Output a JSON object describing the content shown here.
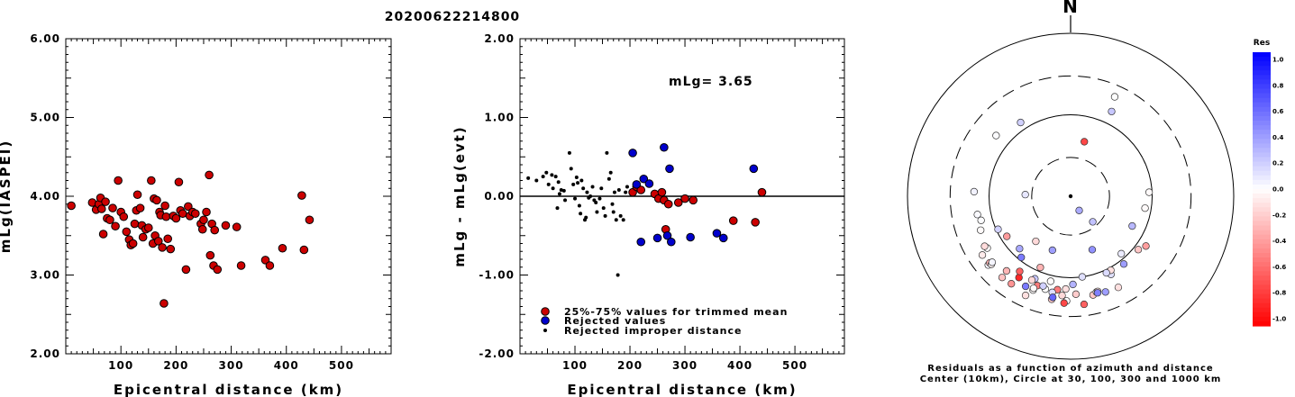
{
  "title": "20200622214800",
  "chart_data": [
    {
      "type": "scatter",
      "id": "left",
      "xlabel": "Epicentral distance (km)",
      "ylabel": "mLg(IASPEI)",
      "xlim": [
        0,
        590
      ],
      "ylim": [
        2.0,
        6.0
      ],
      "xticks": [
        100,
        200,
        300,
        400,
        500
      ],
      "yticks": [
        2.0,
        3.0,
        4.0,
        5.0,
        6.0
      ],
      "xtick_labels": [
        "100",
        "200",
        "300",
        "400",
        "500"
      ],
      "ytick_labels": [
        "2.00",
        "3.00",
        "4.00",
        "5.00",
        "6.00"
      ],
      "points": [
        [
          10,
          3.88
        ],
        [
          48,
          3.92
        ],
        [
          55,
          3.83
        ],
        [
          60,
          3.9
        ],
        [
          63,
          3.98
        ],
        [
          65,
          3.84
        ],
        [
          68,
          3.52
        ],
        [
          72,
          3.93
        ],
        [
          75,
          3.72
        ],
        [
          80,
          3.7
        ],
        [
          85,
          3.85
        ],
        [
          90,
          3.62
        ],
        [
          95,
          4.2
        ],
        [
          100,
          3.8
        ],
        [
          105,
          3.74
        ],
        [
          110,
          3.55
        ],
        [
          115,
          3.45
        ],
        [
          118,
          3.38
        ],
        [
          122,
          3.4
        ],
        [
          125,
          3.65
        ],
        [
          128,
          3.82
        ],
        [
          130,
          4.02
        ],
        [
          135,
          3.85
        ],
        [
          138,
          3.63
        ],
        [
          140,
          3.48
        ],
        [
          145,
          3.58
        ],
        [
          150,
          3.6
        ],
        [
          155,
          4.2
        ],
        [
          158,
          3.4
        ],
        [
          160,
          3.97
        ],
        [
          162,
          3.5
        ],
        [
          165,
          3.95
        ],
        [
          168,
          3.43
        ],
        [
          170,
          3.8
        ],
        [
          172,
          3.76
        ],
        [
          175,
          3.35
        ],
        [
          178,
          2.64
        ],
        [
          180,
          3.88
        ],
        [
          182,
          3.74
        ],
        [
          185,
          3.46
        ],
        [
          190,
          3.33
        ],
        [
          195,
          3.75
        ],
        [
          200,
          3.72
        ],
        [
          205,
          4.18
        ],
        [
          208,
          3.82
        ],
        [
          212,
          3.78
        ],
        [
          218,
          3.07
        ],
        [
          222,
          3.87
        ],
        [
          225,
          3.75
        ],
        [
          230,
          3.8
        ],
        [
          235,
          3.78
        ],
        [
          245,
          3.65
        ],
        [
          248,
          3.58
        ],
        [
          250,
          3.7
        ],
        [
          255,
          3.8
        ],
        [
          260,
          4.27
        ],
        [
          262,
          3.25
        ],
        [
          265,
          3.65
        ],
        [
          268,
          3.12
        ],
        [
          270,
          3.57
        ],
        [
          275,
          3.07
        ],
        [
          290,
          3.63
        ],
        [
          310,
          3.61
        ],
        [
          318,
          3.12
        ],
        [
          362,
          3.19
        ],
        [
          370,
          3.12
        ],
        [
          393,
          3.34
        ],
        [
          428,
          4.01
        ],
        [
          432,
          3.32
        ],
        [
          442,
          3.7
        ]
      ]
    },
    {
      "type": "scatter",
      "id": "middle",
      "xlabel": "Epicentral distance (km)",
      "ylabel": "mLg - mLg(evt)",
      "xlim": [
        0,
        590
      ],
      "ylim": [
        -2.0,
        2.0
      ],
      "xticks": [
        100,
        200,
        300,
        400,
        500
      ],
      "yticks": [
        -2.0,
        -1.0,
        0.0,
        1.0,
        2.0
      ],
      "xtick_labels": [
        "100",
        "200",
        "300",
        "400",
        "500"
      ],
      "ytick_labels": [
        "-2.00",
        "-1.00",
        "0.00",
        "1.00",
        "2.00"
      ],
      "annotation": "mLg= 3.65",
      "legend": [
        {
          "label": "25%-75% values for trimmed mean",
          "color": "#cc0000"
        },
        {
          "label": "Rejected values",
          "color": "#0000cc"
        },
        {
          "label": "Rejected improper distance",
          "color": "#000000"
        }
      ],
      "series": [
        {
          "name": "25%-75% values for trimmed mean",
          "color": "#cc0000",
          "points": [
            [
              205,
              0.05
            ],
            [
              212,
              0.12
            ],
            [
              220,
              0.08
            ],
            [
              245,
              0.03
            ],
            [
              252,
              -0.03
            ],
            [
              258,
              0.05
            ],
            [
              262,
              -0.05
            ],
            [
              265,
              -0.42
            ],
            [
              270,
              -0.1
            ],
            [
              288,
              -0.08
            ],
            [
              300,
              -0.03
            ],
            [
              315,
              -0.05
            ],
            [
              388,
              -0.31
            ],
            [
              428,
              -0.33
            ],
            [
              440,
              0.05
            ]
          ]
        },
        {
          "name": "Rejected values",
          "color": "#0000cc",
          "points": [
            [
              205,
              0.55
            ],
            [
              212,
              0.15
            ],
            [
              220,
              -0.58
            ],
            [
              225,
              0.22
            ],
            [
              235,
              0.16
            ],
            [
              250,
              -0.53
            ],
            [
              262,
              0.62
            ],
            [
              268,
              -0.5
            ],
            [
              272,
              0.35
            ],
            [
              275,
              -0.58
            ],
            [
              310,
              -0.52
            ],
            [
              358,
              -0.47
            ],
            [
              370,
              -0.53
            ],
            [
              425,
              0.35
            ]
          ]
        },
        {
          "name": "Rejected improper distance",
          "color": "#000000",
          "points": [
            [
              15,
              0.23
            ],
            [
              30,
              0.2
            ],
            [
              42,
              0.25
            ],
            [
              48,
              0.3
            ],
            [
              52,
              0.15
            ],
            [
              58,
              0.27
            ],
            [
              60,
              0.1
            ],
            [
              65,
              0.25
            ],
            [
              68,
              -0.15
            ],
            [
              70,
              0.18
            ],
            [
              72,
              0.03
            ],
            [
              75,
              0.08
            ],
            [
              80,
              0.07
            ],
            [
              82,
              -0.05
            ],
            [
              90,
              0.55
            ],
            [
              93,
              0.35
            ],
            [
              97,
              0.15
            ],
            [
              100,
              -0.03
            ],
            [
              103,
              0.24
            ],
            [
              105,
              0.17
            ],
            [
              108,
              -0.12
            ],
            [
              110,
              -0.22
            ],
            [
              112,
              0.2
            ],
            [
              115,
              0.1
            ],
            [
              118,
              -0.3
            ],
            [
              120,
              -0.27
            ],
            [
              122,
              0.05
            ],
            [
              125,
              -0.02
            ],
            [
              128,
              0.0
            ],
            [
              132,
              0.12
            ],
            [
              135,
              -0.05
            ],
            [
              138,
              -0.08
            ],
            [
              140,
              -0.2
            ],
            [
              145,
              -0.03
            ],
            [
              148,
              0.1
            ],
            [
              152,
              -0.15
            ],
            [
              155,
              -0.25
            ],
            [
              158,
              0.55
            ],
            [
              162,
              0.22
            ],
            [
              165,
              0.3
            ],
            [
              168,
              -0.1
            ],
            [
              170,
              -0.2
            ],
            [
              172,
              0.05
            ],
            [
              175,
              -0.3
            ],
            [
              178,
              -1.0
            ],
            [
              180,
              0.08
            ],
            [
              183,
              -0.25
            ],
            [
              188,
              -0.3
            ],
            [
              192,
              0.05
            ],
            [
              195,
              0.12
            ]
          ]
        }
      ]
    },
    {
      "type": "scatter",
      "id": "polar",
      "subtype": "polar",
      "north_label": "N",
      "rings": [
        {
          "distance_km": 10,
          "style": "dot"
        },
        {
          "distance_km": 30,
          "style": "dashed"
        },
        {
          "distance_km": 100,
          "style": "solid"
        },
        {
          "distance_km": 300,
          "style": "dashed"
        },
        {
          "distance_km": 1000,
          "style": "solid"
        }
      ],
      "caption_line1": "Residuals as a function of azimuth and distance",
      "caption_line2": "Center (10km), Circle at 30, 100, 300 and 1000 km",
      "colorbar_title": "Res",
      "colorbar_labels": [
        "1.0",
        "0.8",
        "0.6",
        "0.4",
        "0.2",
        "0.0",
        "-0.2",
        "-0.4",
        "-0.6",
        "-0.8",
        "-1.0"
      ],
      "points": [
        [
          14.6,
          258.9,
          0.02
        ],
        [
          13.7,
          254.9,
          0.01
        ],
        [
          15.3,
          272.7,
          0.05
        ],
        [
          12.4,
          325.9,
          0.18
        ],
        [
          15.1,
          309.2,
          0.01
        ],
        [
          21.6,
          23.9,
          0.0
        ],
        [
          14.3,
          25.8,
          0.22
        ],
        [
          4.9,
          14.1,
          -0.72
        ],
        [
          9.2,
          87.1,
          -0.02
        ],
        [
          8.4,
          99.1,
          -0.02
        ],
        [
          11.4,
          128.3,
          -0.22
        ],
        [
          6.9,
          115.8,
          0.28
        ],
        [
          8.7,
          138.6,
          0.08
        ],
        [
          2.6,
          139.1,
          0.24
        ],
        [
          1.6,
          149.0,
          0.33
        ],
        [
          8.4,
          237.8,
          -0.39
        ],
        [
          9.5,
          245.5,
          0.18
        ],
        [
          5.0,
          198.6,
          0.38
        ],
        [
          5.1,
          158.0,
          0.43
        ],
        [
          12.0,
          152.7,
          0.12
        ],
        [
          10.0,
          171.8,
          0.12
        ],
        [
          13.8,
          183.0,
          -0.12
        ],
        [
          14.4,
          188.0,
          -0.52
        ],
        [
          15.2,
          195.2,
          0.0
        ],
        [
          19.3,
          190.4,
          -0.2
        ],
        [
          12.7,
          203.4,
          0.22
        ],
        [
          13.6,
          204.8,
          -0.15
        ],
        [
          14.8,
          200.4,
          -0.52
        ],
        [
          21.7,
          172.9,
          -0.62
        ],
        [
          17.8,
          160.0,
          0.38
        ],
        [
          14.2,
          197.0,
          0.18
        ],
        [
          17.5,
          167.2,
          -0.22
        ],
        [
          16.5,
          164.9,
          -0.01
        ],
        [
          3.6,
          272.1,
          0.1
        ],
        [
          5.0,
          217.6,
          -0.15
        ],
        [
          8.9,
          203.0,
          -0.3
        ],
        [
          7.9,
          224.2,
          0.34
        ],
        [
          9.2,
          218.9,
          0.52
        ],
        [
          16.4,
          164.1,
          -0.12
        ],
        [
          10.8,
          151.5,
          -0.12
        ],
        [
          11.8,
          193.2,
          -0.01
        ],
        [
          17.4,
          201.8,
          -0.01
        ],
        [
          15.9,
          190.8,
          0.12
        ],
        [
          16.7,
          184.9,
          -0.15
        ],
        [
          16.0,
          176.9,
          -0.2
        ],
        [
          16.5,
          201.9,
          -0.02
        ],
        [
          19.3,
          182.2,
          -0.01
        ],
        [
          11.4,
          141.9,
          0.38
        ],
        [
          12.8,
          123.5,
          -0.38
        ],
        [
          20.7,
          230.1,
          0.03
        ],
        [
          19.3,
          230.5,
          -0.31
        ],
        [
          16.0,
          238.1,
          -0.01
        ],
        [
          15.1,
          249.3,
          -0.02
        ],
        [
          19.1,
          229.3,
          -0.04
        ],
        [
          16.6,
          239.8,
          -0.14
        ],
        [
          18.1,
          229.9,
          0.04
        ],
        [
          15.2,
          212.4,
          -0.85
        ],
        [
          13.0,
          214.1,
          -0.62
        ],
        [
          17.2,
          206.5,
          0.52
        ],
        [
          10.9,
          155.0,
          0.14
        ],
        [
          20.6,
          183.5,
          -0.72
        ],
        [
          19.8,
          214.1,
          -0.42
        ],
        [
          20.1,
          220.1,
          -0.24
        ],
        [
          20.0,
          236.3,
          -0.08
        ],
        [
          18.2,
          190.0,
          0.6
        ],
        [
          17.0,
          164.4,
          0.5
        ],
        [
          12.1,
          178.5,
          0.3
        ],
        [
          18.3,
          152.4,
          -0.12
        ],
        [
          21.7,
          204.4,
          -0.12
        ],
        [
          16.1,
          220.6,
          -0.29
        ]
      ]
    }
  ]
}
